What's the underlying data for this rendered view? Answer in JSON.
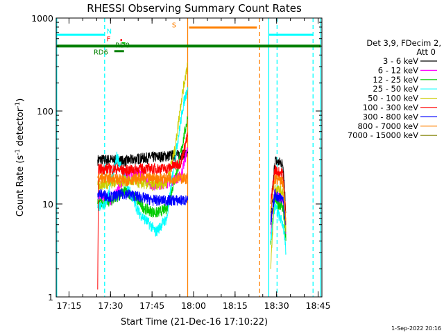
{
  "chart_data": {
    "type": "line",
    "title": "RHESSI Observing Summary Count Rates",
    "xlabel": "Start Time (21-Dec-16 17:10:22)",
    "ylabel_main": "Count Rate (s",
    "ylabel_sup1": "-1",
    "ylabel_mid": " detector",
    "ylabel_sup2": "-1",
    "ylabel_end": ")",
    "yscale": "log",
    "ylim": [
      1,
      1000
    ],
    "xlim_minutes": [
      0,
      96
    ],
    "x_ticks": [
      {
        "label": "17:15",
        "min": 4.63
      },
      {
        "label": "17:30",
        "min": 19.63
      },
      {
        "label": "17:45",
        "min": 34.63
      },
      {
        "label": "18:00",
        "min": 49.63
      },
      {
        "label": "18:15",
        "min": 64.63
      },
      {
        "label": "18:30",
        "min": 79.63
      },
      {
        "label": "18:45",
        "min": 94.63
      }
    ],
    "y_ticks": [
      {
        "label": "1",
        "value": 1
      },
      {
        "label": "10",
        "value": 10
      },
      {
        "label": "100",
        "value": 100
      },
      {
        "label": "1000",
        "value": 1000
      }
    ],
    "legend_title_1": "Det 3,9, FDecim 2,",
    "legend_title_2": "Att 0",
    "legend": [
      {
        "name": "3 - 6 keV",
        "color": "#000000"
      },
      {
        "name": "6 - 12 keV",
        "color": "#ff00ff"
      },
      {
        "name": "12 - 25 keV",
        "color": "#00cc00"
      },
      {
        "name": "25 - 50 keV",
        "color": "#00ffff"
      },
      {
        "name": "50 - 100 keV",
        "color": "#cccc00"
      },
      {
        "name": "100 - 300 keV",
        "color": "#ff0000"
      },
      {
        "name": "300 - 800 keV",
        "color": "#0000ff"
      },
      {
        "name": "800 - 7000 keV",
        "color": "#ff8000"
      },
      {
        "name": "7000 - 15000 keV",
        "color": "#808000"
      }
    ],
    "series": [
      {
        "name": "3 - 6 keV",
        "color": "#000000",
        "segments": [
          {
            "x": [
              15.0,
              20,
              25,
              30,
              35,
              40,
              45,
              47.5
            ],
            "y": [
              30,
              30,
              29,
              31,
              32,
              33,
              34,
              35
            ]
          },
          {
            "x": [
              77.5,
              79,
              80,
              81,
              82,
              83
            ],
            "y": [
              6,
              30,
              28,
              28,
              27,
              8
            ]
          }
        ]
      },
      {
        "name": "6 - 12 keV",
        "color": "#ff00ff",
        "segments": [
          {
            "x": [
              15.0,
              20,
              25,
              30,
              35,
              40,
              45,
              47.5
            ],
            "y": [
              12,
              11,
              20,
              22,
              16,
              17,
              20,
              40
            ]
          },
          {
            "x": [
              77.5,
              79,
              80,
              81,
              82,
              83
            ],
            "y": [
              5,
              14,
              12,
              11,
              11,
              5
            ]
          }
        ]
      },
      {
        "name": "12 - 25 keV",
        "color": "#00cc00",
        "segments": [
          {
            "x": [
              15.0,
              20,
              25,
              28,
              32,
              36,
              40,
              44,
              47.5
            ],
            "y": [
              10,
              11,
              14,
              12,
              9,
              8,
              9,
              25,
              85
            ]
          },
          {
            "x": [
              77.5,
              79,
              80,
              81,
              82,
              83
            ],
            "y": [
              4,
              12,
              10,
              10,
              9,
              4
            ]
          }
        ]
      },
      {
        "name": "25 - 50 keV",
        "color": "#00ffff",
        "segments": [
          {
            "x": [
              15.0,
              18,
              22,
              26,
              30,
              34,
              36,
              38,
              40,
              42,
              44,
              46,
              47.5
            ],
            "y": [
              9,
              10,
              33,
              15,
              8,
              6,
              5,
              6,
              7,
              20,
              50,
              120,
              180
            ]
          },
          {
            "x": [
              77.5,
              79,
              80,
              81,
              82,
              83
            ],
            "y": [
              4,
              10,
              8,
              7,
              6,
              3
            ]
          }
        ]
      },
      {
        "name": "50 - 100 keV",
        "color": "#cccc00",
        "segments": [
          {
            "x": [
              15.0,
              20,
              25,
              30,
              35,
              40,
              43,
              45,
              47.5
            ],
            "y": [
              16,
              17,
              18,
              17,
              16,
              17,
              40,
              120,
              330
            ]
          },
          {
            "x": [
              77.5,
              79,
              80,
              81,
              82,
              83
            ],
            "y": [
              2,
              15,
              14,
              14,
              13,
              5
            ]
          }
        ]
      },
      {
        "name": "100 - 300 keV",
        "color": "#ff0000",
        "segments": [
          {
            "x": [
              15.0,
              15.3,
              20,
              25,
              30,
              35,
              40,
              45,
              47.5
            ],
            "y": [
              1.2,
              24,
              24,
              23,
              24,
              24,
              24,
              28,
              55
            ]
          },
          {
            "x": [
              77.5,
              79,
              80,
              81,
              82,
              83
            ],
            "y": [
              10,
              24,
              22,
              22,
              21,
              7
            ]
          }
        ]
      },
      {
        "name": "300 - 800 keV",
        "color": "#0000ff",
        "segments": [
          {
            "x": [
              15.0,
              20,
              25,
              30,
              35,
              40,
              45,
              47.5
            ],
            "y": [
              13,
              12,
              13,
              12,
              11,
              11,
              11,
              11
            ]
          },
          {
            "x": [
              77.5,
              79,
              80,
              81,
              82,
              83
            ],
            "y": [
              6,
              13,
              12,
              12,
              11,
              6
            ]
          }
        ]
      },
      {
        "name": "800 - 7000 keV",
        "color": "#ff8000",
        "segments": [
          {
            "x": [
              15.0,
              20,
              25,
              30,
              35,
              40,
              45,
              47.5
            ],
            "y": [
              19,
              19,
              18,
              19,
              19,
              19,
              19,
              19
            ]
          },
          {
            "x": [
              77.5,
              79,
              80,
              81,
              82,
              83
            ],
            "y": [
              8,
              19,
              18,
              18,
              17,
              6
            ]
          }
        ]
      }
    ],
    "vlines": [
      {
        "min": 0.2,
        "style": "solid",
        "color": "#00ffff"
      },
      {
        "min": 17.5,
        "style": "dashed",
        "color": "#00ffff"
      },
      {
        "min": 47.5,
        "style": "solid",
        "color": "#ff8000"
      },
      {
        "min": 73.5,
        "style": "dashed",
        "color": "#ff8000"
      },
      {
        "min": 76.8,
        "style": "solid",
        "color": "#00ffff"
      },
      {
        "min": 79.8,
        "style": "dashed",
        "color": "#00ffff"
      },
      {
        "min": 92.8,
        "style": "dashed",
        "color": "#00ffff"
      },
      {
        "min": 95.6,
        "style": "solid",
        "color": "#00ffff"
      }
    ],
    "flag_bars": [
      {
        "x": [
          0.2,
          17.5
        ],
        "y": 660,
        "color": "#00ffff",
        "width": 3
      },
      {
        "x": [
          76.8,
          92.8
        ],
        "y": 660,
        "color": "#00ffff",
        "width": 3
      },
      {
        "x": [
          0.2,
          95.6
        ],
        "y": 500,
        "color": "#008000",
        "width": 4
      },
      {
        "x": [
          48.0,
          72.5
        ],
        "y": 790,
        "color": "#ff8000",
        "width": 3
      },
      {
        "x": [
          21.0,
          24.5
        ],
        "y": 440,
        "color": "#008000",
        "width": 3
      },
      {
        "x": [
          23.2,
          23.8
        ],
        "y": 580,
        "color": "#ff0000",
        "width": 3
      },
      {
        "x": [
          23.8,
          25.0
        ],
        "y": 540,
        "color": "#00cc00",
        "width": 2
      }
    ],
    "flag_labels": [
      {
        "text": "N",
        "x": 18.2,
        "y": 680,
        "color": "#00ffff"
      },
      {
        "text": "F",
        "x": 18.2,
        "y": 560,
        "color": "#ff0000"
      },
      {
        "text": "RD0",
        "x": 21.3,
        "y": 480,
        "color": "#008000"
      },
      {
        "text": "RD6",
        "x": 13.5,
        "y": 405,
        "color": "#008000"
      },
      {
        "text": "S",
        "x": 41.8,
        "y": 790,
        "color": "#ff8000"
      }
    ]
  },
  "footer": {
    "timestamp": "1-Sep-2022 20:16"
  }
}
